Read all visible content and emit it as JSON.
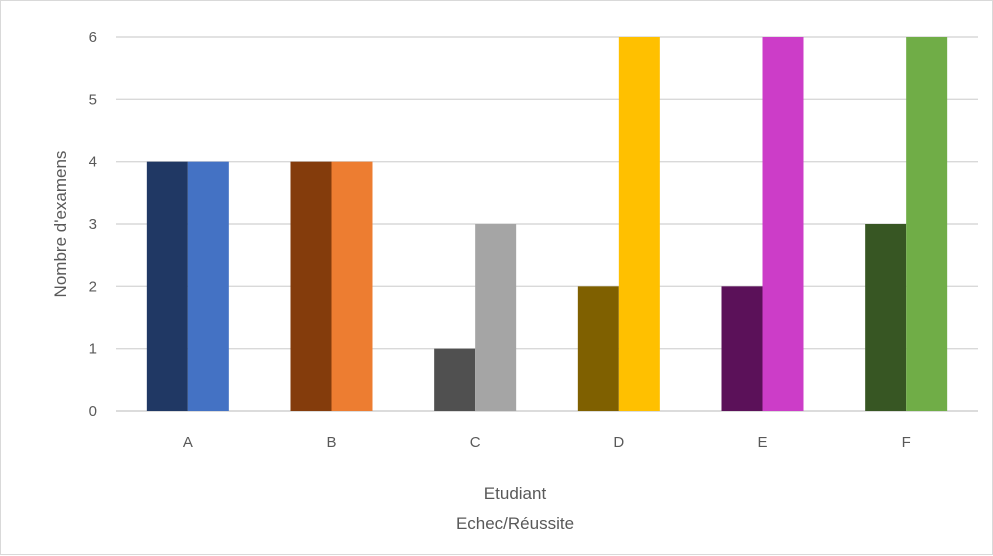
{
  "chart_data": {
    "type": "bar",
    "title": "",
    "xlabel": "Etudiant",
    "xlabel_sub": "Echec/Réussite",
    "ylabel": "Nombre d'examens",
    "categories": [
      "A",
      "B",
      "C",
      "D",
      "E",
      "F"
    ],
    "ylim": [
      0,
      6
    ],
    "yticks": [
      0,
      1,
      2,
      3,
      4,
      5,
      6
    ],
    "grid": true,
    "legend": "none",
    "series": [
      {
        "values": [
          4,
          4,
          1,
          2,
          2,
          3
        ],
        "colors": [
          "#203864",
          "#843c0c",
          "#505050",
          "#7f6000",
          "#5b1159",
          "#375623"
        ]
      },
      {
        "values": [
          4,
          4,
          3,
          6,
          6,
          6
        ],
        "colors": [
          "#4472c4",
          "#ed7d31",
          "#a5a5a5",
          "#ffc000",
          "#cc3dc8",
          "#70ad47"
        ]
      }
    ]
  }
}
